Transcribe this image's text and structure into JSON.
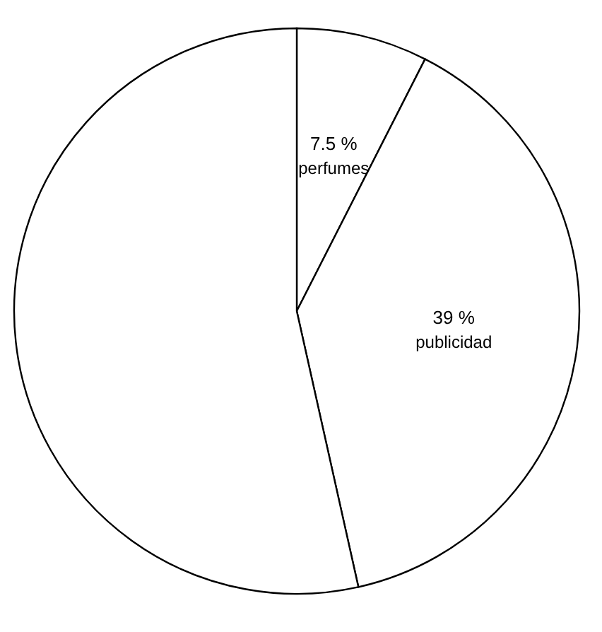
{
  "chart_data": {
    "type": "pie",
    "categories": [
      "perfumes",
      "publicidad",
      null
    ],
    "values": [
      7.5,
      39,
      53.5
    ],
    "value_labels": [
      "7.5 %",
      "39 %",
      null
    ],
    "colors": [
      "#ffffff",
      "#ffffff",
      "#ffffff"
    ]
  }
}
